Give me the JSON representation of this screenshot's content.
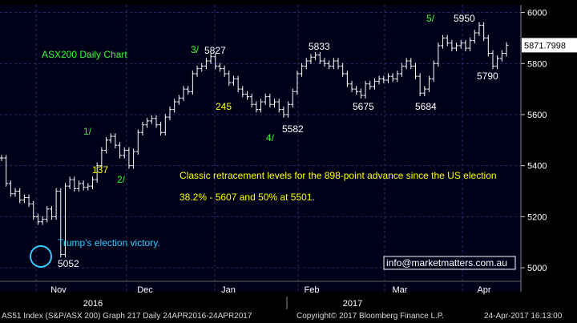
{
  "chart_data": {
    "type": "ohlc",
    "title": "ASX200 Daily Chart",
    "ylim": [
      4950,
      6030
    ],
    "yticks": [
      5000,
      5200,
      5400,
      5600,
      5800,
      6000
    ],
    "last_price_label": "5871.7998",
    "months": [
      "Nov",
      "Dec",
      "Jan",
      "Feb",
      "Mar",
      "Apr"
    ],
    "years": [
      "2016",
      "2017"
    ],
    "prices": [
      5430,
      5330,
      5290,
      5300,
      5265,
      5275,
      5250,
      5200,
      5180,
      5190,
      5230,
      5200,
      5300,
      5052,
      5320,
      5345,
      5310,
      5330,
      5315,
      5320,
      5345,
      5400,
      5460,
      5500,
      5515,
      5480,
      5440,
      5460,
      5400,
      5455,
      5530,
      5560,
      5575,
      5585,
      5560,
      5530,
      5590,
      5620,
      5650,
      5665,
      5700,
      5690,
      5760,
      5780,
      5790,
      5810,
      5827,
      5790,
      5780,
      5760,
      5725,
      5740,
      5700,
      5680,
      5670,
      5640,
      5620,
      5650,
      5670,
      5640,
      5650,
      5620,
      5600,
      5640,
      5690,
      5760,
      5790,
      5810,
      5825,
      5833,
      5810,
      5800,
      5790,
      5810,
      5790,
      5760,
      5720,
      5700,
      5690,
      5675,
      5720,
      5710,
      5730,
      5740,
      5735,
      5750,
      5740,
      5760,
      5790,
      5810,
      5790,
      5750,
      5684,
      5700,
      5740,
      5800,
      5870,
      5900,
      5880,
      5860,
      5870,
      5880,
      5860,
      5890,
      5920,
      5950,
      5900,
      5840,
      5790,
      5820,
      5840,
      5871.8
    ],
    "annotations": [
      {
        "text": "ASX200 Daily Chart",
        "color": "#33ff33"
      },
      {
        "text": "1/",
        "color": "#33ff33"
      },
      {
        "text": "2/",
        "color": "#33ff33"
      },
      {
        "text": "3/",
        "color": "#33ff33"
      },
      {
        "text": "4/",
        "color": "#33ff33"
      },
      {
        "text": "5/",
        "color": "#33ff33"
      },
      {
        "text": "137",
        "color": "#ffff00"
      },
      {
        "text": "245",
        "color": "#ffff00"
      },
      {
        "text": "5827",
        "color": "#ffffff"
      },
      {
        "text": "5833",
        "color": "#ffffff"
      },
      {
        "text": "5582",
        "color": "#ffffff"
      },
      {
        "text": "5675",
        "color": "#ffffff"
      },
      {
        "text": "5684",
        "color": "#ffffff"
      },
      {
        "text": "5950",
        "color": "#ffffff"
      },
      {
        "text": "5790",
        "color": "#ffffff"
      },
      {
        "text": "5052",
        "color": "#ffffff"
      },
      {
        "text": "Trump's election victory.",
        "color": "#33ccff"
      },
      {
        "text": "Classic retracement levels for the 898-point advance since the US election",
        "color": "#ffff00"
      },
      {
        "text": "38.2% - 5607 and 50% at 5501.",
        "color": "#ffff00"
      },
      {
        "text": "info@marketmatters.com.au",
        "color": "#ffffff"
      }
    ]
  },
  "footer": {
    "left": "AS51 Index (S&P/ASX 200) Graph 217  Daily 24APR2016-24APR2017",
    "mid": "Copyright© 2017 Bloomberg Finance L.P.",
    "right": "24-Apr-2017 16:13:00"
  },
  "colors": {
    "background": "#000018",
    "grid": "#2c2c6a",
    "bars": "#ffffff",
    "circle": "#33ccff",
    "wave": "#33ff33",
    "highlight": "#ffff00"
  }
}
